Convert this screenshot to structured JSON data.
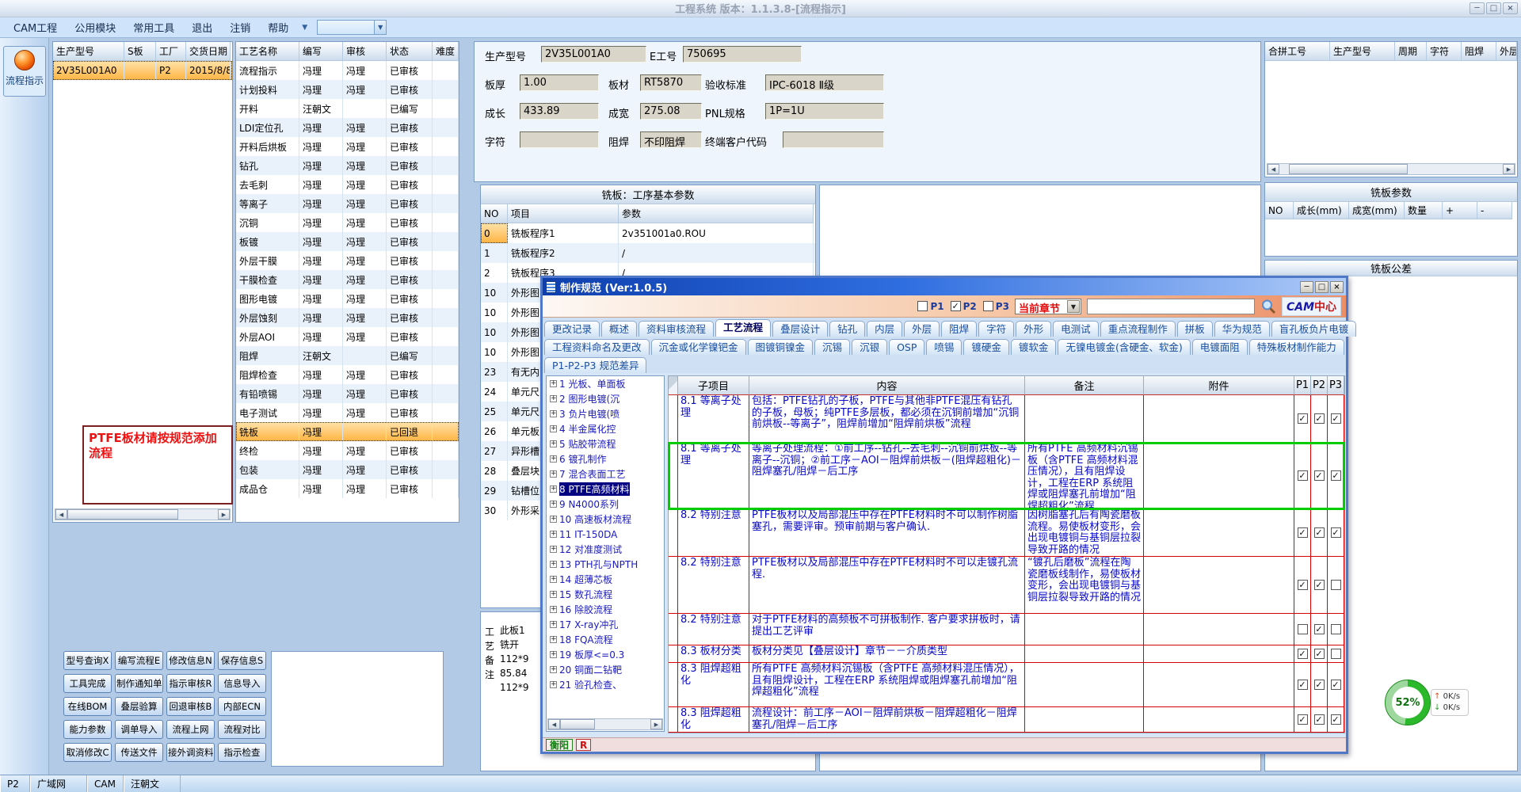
{
  "window": {
    "title": "工程系统 版本：1.1.3.8-[流程指示]",
    "controls": {
      "min": "─",
      "max": "□",
      "close": "×"
    }
  },
  "menu": {
    "items": [
      "CAM工程",
      "公用模块",
      "常用工具",
      "退出",
      "注销",
      "帮助"
    ],
    "arrow": "▼"
  },
  "sidebar": {
    "flow_button": "流程指示"
  },
  "product_table": {
    "headers": [
      "生产型号",
      "S板",
      "工厂",
      "交货日期"
    ],
    "row": [
      "2V35L001A0",
      "",
      "P2",
      "2015/8/8"
    ]
  },
  "warning": {
    "text": "PTFE板材请按规范添加流程"
  },
  "process_table": {
    "headers": [
      "工艺名称",
      "编写",
      "审核",
      "状态",
      "难度"
    ],
    "selected_index": 19,
    "rows": [
      [
        "流程指示",
        "冯理",
        "冯理",
        "已审核",
        ""
      ],
      [
        "计划投料",
        "冯理",
        "冯理",
        "已审核",
        ""
      ],
      [
        "开料",
        "汪朝文",
        "",
        "已编写",
        ""
      ],
      [
        "LDI定位孔",
        "冯理",
        "冯理",
        "已审核",
        ""
      ],
      [
        "开料后烘板",
        "冯理",
        "冯理",
        "已审核",
        ""
      ],
      [
        "钻孔",
        "冯理",
        "冯理",
        "已审核",
        ""
      ],
      [
        "去毛刺",
        "冯理",
        "冯理",
        "已审核",
        ""
      ],
      [
        "等离子",
        "冯理",
        "冯理",
        "已审核",
        ""
      ],
      [
        "沉铜",
        "冯理",
        "冯理",
        "已审核",
        ""
      ],
      [
        "板镀",
        "冯理",
        "冯理",
        "已审核",
        ""
      ],
      [
        "外层干膜",
        "冯理",
        "冯理",
        "已审核",
        ""
      ],
      [
        "干膜检查",
        "冯理",
        "冯理",
        "已审核",
        ""
      ],
      [
        "图形电镀",
        "冯理",
        "冯理",
        "已审核",
        ""
      ],
      [
        "外层蚀刻",
        "冯理",
        "冯理",
        "已审核",
        ""
      ],
      [
        "外层AOI",
        "冯理",
        "冯理",
        "已审核",
        ""
      ],
      [
        "阻焊",
        "汪朝文",
        "",
        "已编写",
        ""
      ],
      [
        "阻焊检查",
        "冯理",
        "冯理",
        "已审核",
        ""
      ],
      [
        "有铅喷锡",
        "冯理",
        "冯理",
        "已审核",
        ""
      ],
      [
        "电子测试",
        "冯理",
        "冯理",
        "已审核",
        ""
      ],
      [
        "铣板",
        "冯理",
        "",
        "已回退",
        ""
      ],
      [
        "终检",
        "冯理",
        "冯理",
        "已审核",
        ""
      ],
      [
        "包装",
        "冯理",
        "冯理",
        "已审核",
        ""
      ],
      [
        "成品仓",
        "冯理",
        "冯理",
        "已审核",
        ""
      ]
    ]
  },
  "info_form": {
    "fields": [
      {
        "label": "生产型号",
        "value": "2V35L001A0"
      },
      {
        "label": "E工号",
        "value": "750695"
      },
      {
        "label": "板厚",
        "value": "1.00"
      },
      {
        "label": "板材",
        "value": "RT5870"
      },
      {
        "label": "验收标准",
        "value": "IPC-6018 Ⅱ级"
      },
      {
        "label": "成长",
        "value": "433.89"
      },
      {
        "label": "成宽",
        "value": "275.08"
      },
      {
        "label": "PNL规格",
        "value": "1P=1U"
      },
      {
        "label": "字符",
        "value": ""
      },
      {
        "label": "阻焊",
        "value": "不印阻焊"
      },
      {
        "label": "终端客户代码",
        "value": ""
      }
    ]
  },
  "merge_table": {
    "headers": [
      "合拼工号",
      "生产型号",
      "周期",
      "字符",
      "阻焊",
      "外层"
    ]
  },
  "base_params": {
    "title": "铣板：工序基本参数",
    "headers": [
      "NO",
      "项目",
      "参数"
    ],
    "rows": [
      [
        "0",
        "铣板程序1",
        "2v351001a0.ROU"
      ],
      [
        "1",
        "铣板程序2",
        "/"
      ],
      [
        "2",
        "铣板程序3",
        "/"
      ],
      [
        "10",
        "外形图",
        ""
      ],
      [
        "10",
        "外形图",
        ""
      ],
      [
        "10",
        "外形图",
        ""
      ],
      [
        "10",
        "外形图",
        ""
      ],
      [
        "23",
        "有无内",
        ""
      ],
      [
        "24",
        "单元尺",
        ""
      ],
      [
        "25",
        "单元尺",
        ""
      ],
      [
        "26",
        "单元板",
        ""
      ],
      [
        "27",
        "异形槽",
        ""
      ],
      [
        "28",
        "叠层块",
        ""
      ],
      [
        "29",
        "钻槽位",
        ""
      ],
      [
        "30",
        "外形采",
        ""
      ]
    ]
  },
  "mill_params": {
    "title": "铣板参数",
    "headers": [
      "NO",
      "成长(mm)",
      "成宽(mm)",
      "数量",
      "+",
      "-"
    ]
  },
  "tolerance_panel": {
    "title": "铣板公差"
  },
  "note_panel": {
    "vertical_label": "工艺备注",
    "lines": [
      "此板1",
      "铣开",
      "112*9",
      "85.84",
      "112*9"
    ]
  },
  "buttons_grid": {
    "rows": [
      [
        "型号查询X",
        "编写流程E",
        "修改信息N",
        "保存信息S"
      ],
      [
        "工具完成",
        "制作通知单",
        "指示审核R",
        "信息导入"
      ],
      [
        "在线BOM",
        "叠层验算",
        "回退审核B",
        "内部ECN"
      ],
      [
        "能力参数",
        "调单导入",
        "流程上网",
        "流程对比"
      ],
      [
        "取消修改C",
        "传送文件",
        "接外调资料",
        "指示检查"
      ]
    ]
  },
  "popup": {
    "title": "制作规范 (Ver:1.0.5)",
    "controls": {
      "min": "─",
      "max": "□",
      "close": "×"
    },
    "toolbar": {
      "checkboxes": [
        {
          "label": "P1",
          "checked": false
        },
        {
          "label": "P2",
          "checked": true
        },
        {
          "label": "P3",
          "checked": false
        }
      ],
      "chapter_dropdown": "当前章节",
      "search_placeholder": "",
      "logo_cam": "CAM",
      "logo_center": "中心"
    },
    "tabs_row1": {
      "active_index": 3,
      "items": [
        "更改记录",
        "概述",
        "资料审核流程",
        "工艺流程",
        "叠层设计",
        "钻孔",
        "内层",
        "外层",
        "阻焊",
        "字符",
        "外形",
        "电测试",
        "重点流程制作",
        "拼板",
        "华为规范",
        "盲孔板负片电镀"
      ]
    },
    "tabs_row2": {
      "items": [
        "工程资料命名及更改",
        "沉金或化学镍钯金",
        "图镀铜镍金",
        "沉锡",
        "沉银",
        "OSP",
        "喷锡",
        "镀硬金",
        "镀软金",
        "无镍电镀金(含硬金、软金)",
        "电镀面阻",
        "特殊板材制作能力"
      ]
    },
    "tabs_row3": {
      "items": [
        "P1-P2-P3 规范差异"
      ]
    },
    "tree": {
      "selected_index": 7,
      "items": [
        {
          "num": "1",
          "label": "光板、单面板"
        },
        {
          "num": "2",
          "label": "图形电镀(沉"
        },
        {
          "num": "3",
          "label": "负片电镀(喷"
        },
        {
          "num": "4",
          "label": "半金属化控"
        },
        {
          "num": "5",
          "label": "贴胶带流程"
        },
        {
          "num": "6",
          "label": "镀孔制作"
        },
        {
          "num": "7",
          "label": "混合表面工艺"
        },
        {
          "num": "8",
          "label": "PTFE高频材料"
        },
        {
          "num": "9",
          "label": "N4000系列"
        },
        {
          "num": "10",
          "label": "高速板材流程"
        },
        {
          "num": "11",
          "label": "IT-150DA"
        },
        {
          "num": "12",
          "label": "对准度测试"
        },
        {
          "num": "13",
          "label": "PTH孔与NPTH"
        },
        {
          "num": "14",
          "label": "超薄芯板"
        },
        {
          "num": "15",
          "label": "数孔流程"
        },
        {
          "num": "16",
          "label": "除胶流程"
        },
        {
          "num": "17",
          "label": "X-ray冲孔"
        },
        {
          "num": "18",
          "label": "FQA流程"
        },
        {
          "num": "19",
          "label": "板厚<=0.3"
        },
        {
          "num": "20",
          "label": "铜面二钻靶"
        },
        {
          "num": "21",
          "label": "验孔检查、"
        }
      ]
    },
    "grid": {
      "headers": [
        "子项目",
        "内容",
        "备注",
        "附件",
        "P1",
        "P2",
        "P3"
      ],
      "selected_index": 1,
      "rows": [
        {
          "sub": "8.1 等离子处理",
          "content": "包括：PTFE钻孔的子板，PTFE与其他非PTFE混压有钻孔的子板，母板；纯PTFE多层板，都必须在沉铜前增加“沉铜前烘板--等离子”，阻焊前增加“阻焊前烘板”流程",
          "note": "",
          "checks": [
            true,
            true,
            true
          ]
        },
        {
          "sub": "8.1 等离子处理",
          "content": "等离子处理流程：①前工序--钻孔--去毛刺--沉铜前烘板--等离子--沉铜；②前工序－AOI－阻焊前烘板－(阻焊超粗化)－阻焊塞孔/阻焊－后工序",
          "note": "所有PTFE 高频材料沉锡板（含PTFE 高频材料混压情况），且有阻焊设计，工程在ERP 系统阻焊或阻焊塞孔前增加“阻焊超粗化”流程",
          "checks": [
            true,
            true,
            true
          ]
        },
        {
          "sub": "8.2 特别注意",
          "content": "PTFE板材以及局部混压中存在PTFE材料时不可以制作树脂塞孔，需要评审。预审前期与客户确认.",
          "note": "因树脂塞孔后有陶瓷磨板流程。易使板材变形，会出现电镀铜与基铜层拉裂导致开路的情况",
          "checks": [
            true,
            true,
            true
          ]
        },
        {
          "sub": "8.2 特别注意",
          "content": "PTFE板材以及局部混压中存在PTFE材料时不可以走镀孔流程.",
          "note": "“镀孔后磨板”流程在陶瓷磨板线制作，易使板材变形，会出现电镀铜与基铜层拉裂导致开路的情况",
          "checks": [
            true,
            true,
            false
          ]
        },
        {
          "sub": "8.2 特别注意",
          "content": "对于PTFE材料的高频板不可拼板制作. 客户要求拼板时，请提出工艺评审",
          "note": "",
          "checks": [
            false,
            true,
            false
          ]
        },
        {
          "sub": "8.3 板材分类",
          "content": "板材分类见【叠层设计】章节－－介质类型",
          "note": "",
          "checks": [
            true,
            true,
            false
          ]
        },
        {
          "sub": "8.3 阻焊超粗化",
          "content": "所有PTFE 高频材料沉锡板（含PTFE 高频材料混压情况），且有阻焊设计，工程在ERP 系统阻焊或阻焊塞孔前增加“阻焊超粗化”流程",
          "note": "",
          "checks": [
            true,
            true,
            true
          ]
        },
        {
          "sub": "8.3 阻焊超粗化",
          "content": "流程设计：前工序－AOI－阻焊前烘板－阻焊超粗化－阻焊塞孔/阻焊－后工序",
          "note": "",
          "checks": [
            true,
            true,
            true
          ]
        }
      ]
    },
    "status": {
      "site": "衡阳",
      "flag": "R"
    }
  },
  "net_meter": {
    "percent": "52%",
    "up_speed": "0K/s",
    "down_speed": "0K/s"
  },
  "status_bar": {
    "items": [
      "P2",
      "广域网",
      "CAM",
      "汪朝文"
    ]
  }
}
